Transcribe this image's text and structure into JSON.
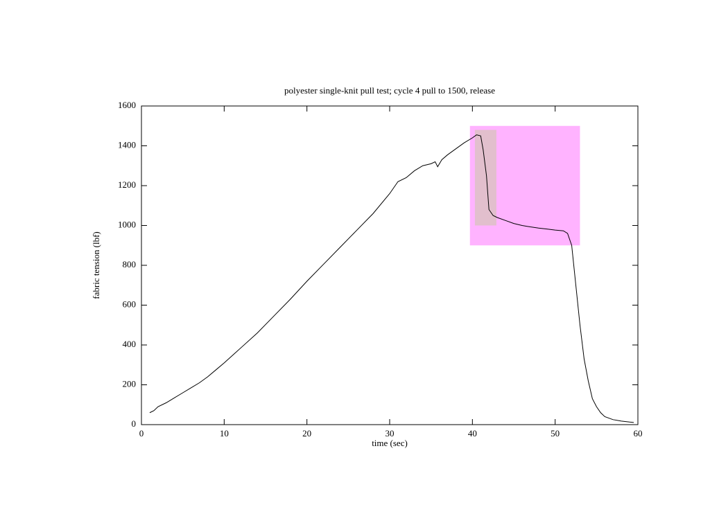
{
  "chart_data": {
    "type": "line",
    "title": "polyester single-knit pull test; cycle 4 pull to 1500, release",
    "x_label": "time (sec)",
    "y_label": "fabric tension (lbf)",
    "x": [
      1,
      1.5,
      2,
      3,
      4,
      5,
      6,
      7,
      8,
      9,
      10,
      12,
      14,
      16,
      18,
      20,
      22,
      24,
      26,
      28,
      30,
      31,
      32,
      33,
      34,
      35,
      35.5,
      35.8,
      36.3,
      37,
      38,
      39,
      40,
      40.5,
      41,
      41.3,
      41.7,
      42,
      42.5,
      43,
      44,
      45,
      46,
      47,
      48,
      49,
      50,
      51,
      51.5,
      52,
      52.5,
      53,
      53.5,
      54,
      54.5,
      55,
      55.5,
      56,
      57,
      58,
      59,
      59.5
    ],
    "series": [
      {
        "color": "#000000",
        "values": [
          60,
          70,
          90,
          110,
          135,
          160,
          185,
          210,
          240,
          275,
          310,
          385,
          460,
          545,
          630,
          720,
          805,
          890,
          975,
          1060,
          1160,
          1220,
          1240,
          1275,
          1300,
          1310,
          1320,
          1295,
          1330,
          1355,
          1385,
          1415,
          1440,
          1455,
          1450,
          1380,
          1250,
          1080,
          1050,
          1040,
          1025,
          1010,
          1000,
          993,
          987,
          982,
          977,
          973,
          960,
          900,
          700,
          500,
          330,
          220,
          130,
          90,
          60,
          40,
          25,
          18,
          13,
          11
        ]
      }
    ],
    "regions": [
      {
        "x": [
          39.7,
          53
        ],
        "y": [
          900,
          1500
        ],
        "color": "#ffb3ff"
      },
      {
        "x": [
          40.3,
          42.9
        ],
        "y": [
          1000,
          1480
        ],
        "color": "#e2bfcd"
      }
    ],
    "xlim": [
      0,
      60
    ],
    "ylim": [
      0,
      1600
    ],
    "xticks": [
      0,
      10,
      20,
      30,
      40,
      50,
      60
    ],
    "yticks": [
      0,
      200,
      400,
      600,
      800,
      1000,
      1200,
      1400,
      1600
    ]
  }
}
